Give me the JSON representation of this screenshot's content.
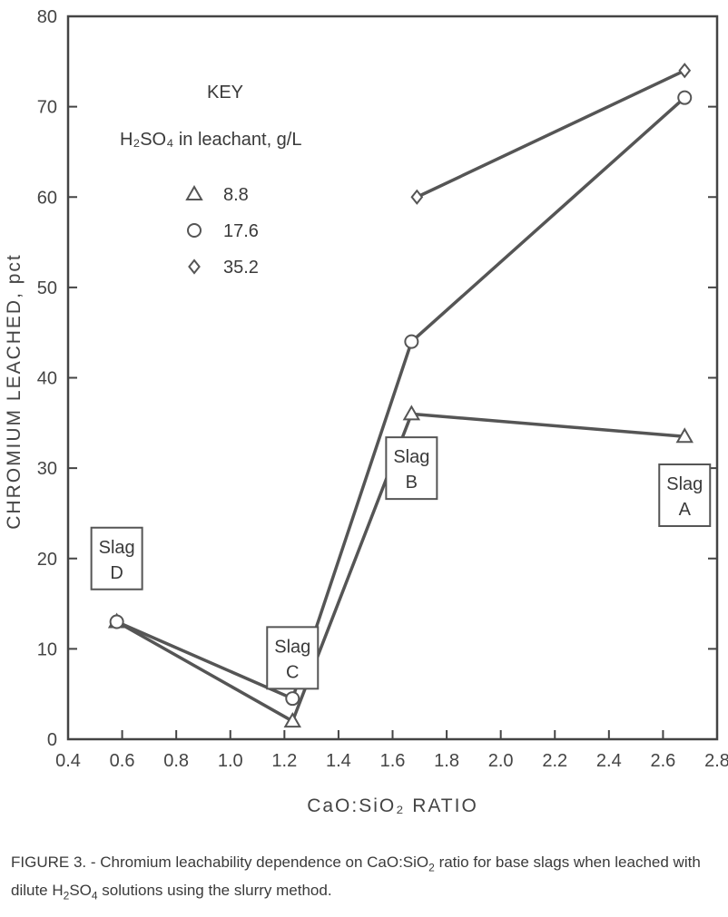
{
  "chart_data": {
    "type": "line",
    "xlabel": "CaO:SiO₂ RATIO",
    "ylabel": "CHROMIUM LEACHED, pct",
    "xlim": [
      0.4,
      2.8
    ],
    "ylim": [
      0,
      80
    ],
    "x_ticks": [
      "0.4",
      "0.6",
      "0.8",
      "1.0",
      "1.2",
      "1.4",
      "1.6",
      "1.8",
      "2.0",
      "2.2",
      "2.4",
      "2.6",
      "2.8"
    ],
    "y_ticks": [
      "0",
      "10",
      "20",
      "30",
      "40",
      "50",
      "60",
      "70",
      "80"
    ],
    "legend_title": "KEY",
    "legend_subtitle": "H₂SO₄ in leachant, g/L",
    "legend_position": "top-left",
    "series": [
      {
        "name": "8.8",
        "marker": "triangle",
        "x": [
          0.58,
          1.23,
          1.67,
          2.68
        ],
        "y": [
          13,
          2,
          36,
          33.5
        ]
      },
      {
        "name": "17.6",
        "marker": "circle",
        "x": [
          0.58,
          1.23,
          1.67,
          2.68
        ],
        "y": [
          13,
          4.5,
          44,
          71
        ]
      },
      {
        "name": "35.2",
        "marker": "diamond",
        "x": [
          1.69,
          2.68
        ],
        "y": [
          60,
          74
        ]
      }
    ],
    "annotations": [
      {
        "line1": "Slag",
        "line2": "D",
        "x": 0.58,
        "y": 20
      },
      {
        "line1": "Slag",
        "line2": "C",
        "x": 1.23,
        "y": 9
      },
      {
        "line1": "Slag",
        "line2": "B",
        "x": 1.67,
        "y": 30
      },
      {
        "line1": "Slag",
        "line2": "A",
        "x": 2.68,
        "y": 27
      }
    ]
  },
  "caption": {
    "lead": "FIGURE 3. - ",
    "text1": "Chromium leachability dependence on CaO:SiO",
    "sub1": "2",
    "text2": " ratio for base slags when leached with dilute H",
    "sub2": "2",
    "text3": "SO",
    "sub3": "4",
    "text4": " solutions using the slurry method."
  },
  "colors": {
    "line": "#555555",
    "axis": "#444444"
  }
}
